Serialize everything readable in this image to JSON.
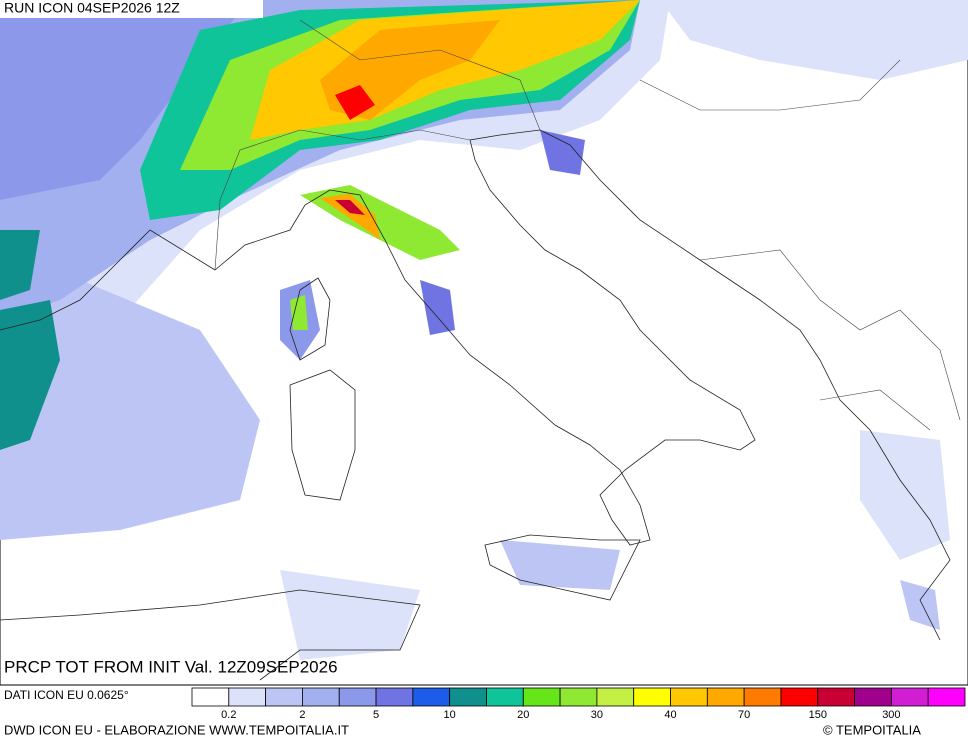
{
  "header": {
    "run": "RUN ICON 04SEP2026 12Z"
  },
  "map": {
    "caption": "PRCP TOT FROM INIT Val. 12Z09SEP2026"
  },
  "legend": {
    "source": "DATI ICON EU 0.0625°",
    "colors": [
      "#ffffff",
      "#dce2fa",
      "#bcc5f4",
      "#a3b0f0",
      "#8c98ea",
      "#6f74e2",
      "#1c5ce8",
      "#10908c",
      "#10c49a",
      "#66e619",
      "#8fe832",
      "#c4f043",
      "#ffff00",
      "#ffc800",
      "#ffa800",
      "#ff7a00",
      "#ff0000",
      "#c80034",
      "#a0008c",
      "#d21ed2",
      "#ff00ff"
    ],
    "labels": [
      "0.2",
      "2",
      "5",
      "10",
      "20",
      "30",
      "40",
      "70",
      "150",
      "300"
    ]
  },
  "footer": {
    "credit": "DWD ICON EU - ELABORAZIONE WWW.TEMPOITALIA.IT",
    "copyright": "© TEMPOITALIA"
  }
}
